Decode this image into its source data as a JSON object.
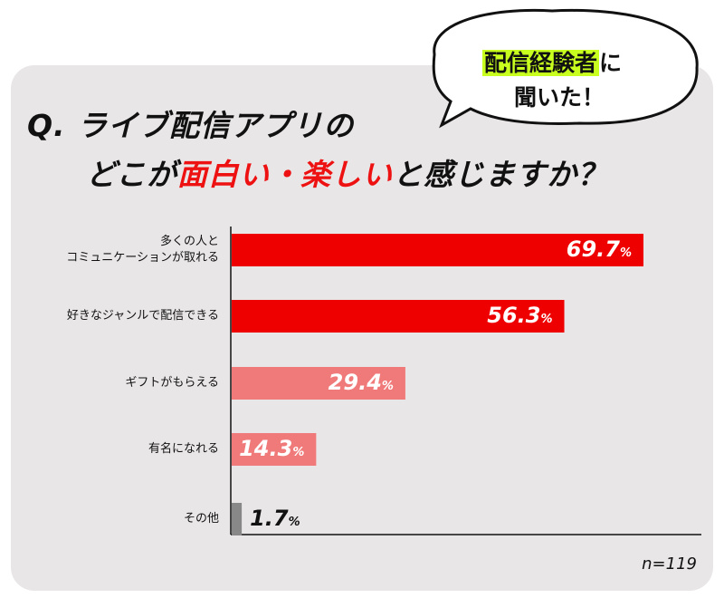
{
  "bubble": {
    "highlight": "配信経験者",
    "line1_rest": "に",
    "line2": "聞いた！"
  },
  "question": {
    "line1": "Q. ライブ配信アプリの",
    "line2_pre": "どこが",
    "line2_highlight": "面白い・楽しい",
    "line2_post": "と感じますか？"
  },
  "colors": {
    "bar_primary": "#ee0000",
    "bar_secondary": "#f07a7a",
    "bar_other": "#888888",
    "highlight_text": "#ee1111",
    "bubble_highlight": "#c8ff1e",
    "panel": "#e9e6e7"
  },
  "chart_data": {
    "type": "bar",
    "orientation": "horizontal",
    "categories": [
      "多くの人と\nコミュニケーションが取れる",
      "好きなジャンルで配信できる",
      "ギフトがもらえる",
      "有名になれる",
      "その他"
    ],
    "values": [
      69.7,
      56.3,
      29.4,
      14.3,
      1.7
    ],
    "value_labels": [
      "69.7",
      "56.3",
      "29.4",
      "14.3",
      "1.7"
    ],
    "unit": "%",
    "xlim": [
      0,
      80
    ],
    "grid": false
  },
  "sample": "n=119"
}
